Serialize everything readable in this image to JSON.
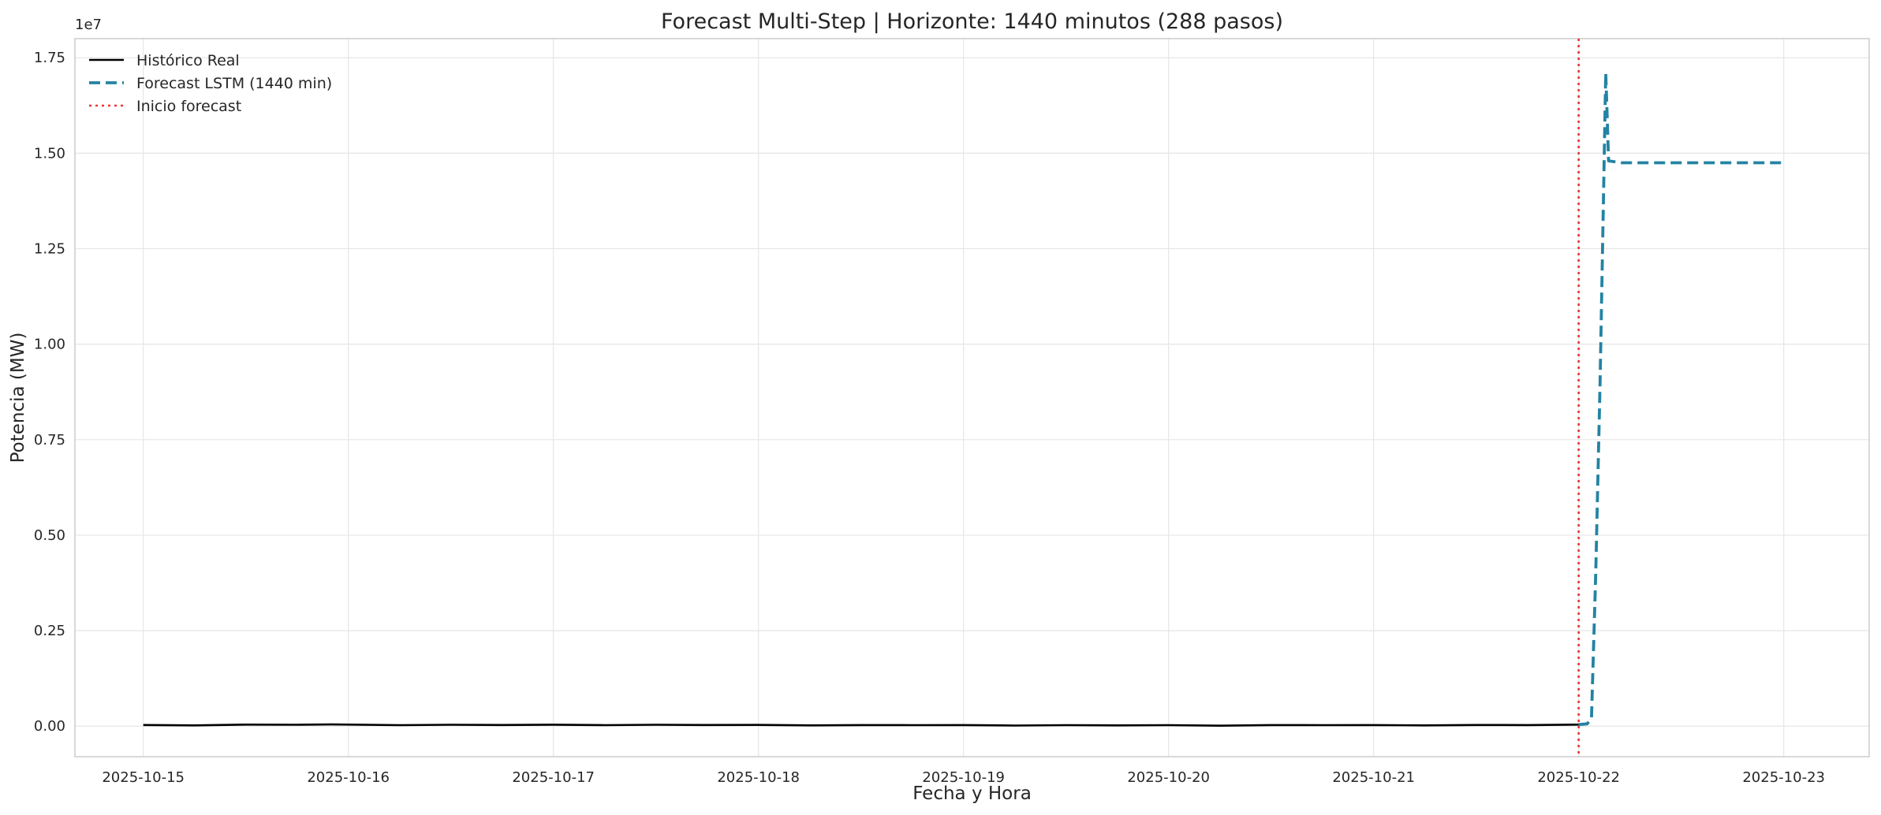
{
  "chart_data": {
    "type": "line",
    "title": "Forecast Multi-Step | Horizonte: 1440 minutos (288 pasos)",
    "xlabel": "Fecha y Hora",
    "ylabel": "Potencia (MW)",
    "y_offset_label": "1e7",
    "y_scale": 10000000,
    "xlim": [
      "2025-10-14T16:00",
      "2025-10-23T10:00"
    ],
    "ylim": [
      -800000,
      18000000
    ],
    "grid": true,
    "legend_position": "top-left",
    "x_ticks": [
      "2025-10-15",
      "2025-10-16",
      "2025-10-17",
      "2025-10-18",
      "2025-10-19",
      "2025-10-20",
      "2025-10-21",
      "2025-10-22",
      "2025-10-23"
    ],
    "y_ticks": [
      0,
      2500000,
      5000000,
      7500000,
      10000000,
      12500000,
      15000000,
      17500000
    ],
    "y_tick_labels": [
      "0.00",
      "0.25",
      "0.50",
      "0.75",
      "1.00",
      "1.25",
      "1.50",
      "1.75"
    ],
    "series": [
      {
        "name": "Histórico Real",
        "color": "#000000",
        "style": "solid",
        "points": [
          [
            "2025-10-15T00:00",
            30000
          ],
          [
            "2025-10-15T06:00",
            20000
          ],
          [
            "2025-10-15T12:00",
            40000
          ],
          [
            "2025-10-15T18:00",
            35000
          ],
          [
            "2025-10-15T22:00",
            45000
          ],
          [
            "2025-10-16T06:00",
            25000
          ],
          [
            "2025-10-16T12:00",
            35000
          ],
          [
            "2025-10-16T18:00",
            30000
          ],
          [
            "2025-10-17T00:00",
            38000
          ],
          [
            "2025-10-17T06:00",
            25000
          ],
          [
            "2025-10-17T12:00",
            35000
          ],
          [
            "2025-10-17T18:00",
            30000
          ],
          [
            "2025-10-18T00:00",
            32000
          ],
          [
            "2025-10-18T06:00",
            20000
          ],
          [
            "2025-10-18T12:00",
            28000
          ],
          [
            "2025-10-18T18:00",
            25000
          ],
          [
            "2025-10-19T00:00",
            28000
          ],
          [
            "2025-10-19T06:00",
            15000
          ],
          [
            "2025-10-19T12:00",
            25000
          ],
          [
            "2025-10-19T18:00",
            20000
          ],
          [
            "2025-10-20T00:00",
            25000
          ],
          [
            "2025-10-20T06:00",
            10000
          ],
          [
            "2025-10-20T12:00",
            28000
          ],
          [
            "2025-10-20T18:00",
            25000
          ],
          [
            "2025-10-21T00:00",
            28000
          ],
          [
            "2025-10-21T06:00",
            20000
          ],
          [
            "2025-10-21T12:00",
            30000
          ],
          [
            "2025-10-21T18:00",
            28000
          ],
          [
            "2025-10-22T00:00",
            40000
          ]
        ]
      },
      {
        "name": "Forecast LSTM (1440 min)",
        "color": "#2383a3",
        "style": "dashed",
        "points": [
          [
            "2025-10-22T00:00",
            40000
          ],
          [
            "2025-10-22T01:00",
            60000
          ],
          [
            "2025-10-22T01:30",
            200000
          ],
          [
            "2025-10-22T02:00",
            4000000
          ],
          [
            "2025-10-22T02:30",
            9000000
          ],
          [
            "2025-10-22T02:45",
            12000000
          ],
          [
            "2025-10-22T03:10",
            17100000
          ],
          [
            "2025-10-22T03:30",
            14800000
          ],
          [
            "2025-10-22T05:00",
            14750000
          ],
          [
            "2025-10-23T00:00",
            14750000
          ]
        ]
      }
    ],
    "annotations": [
      {
        "name": "Inicio forecast",
        "type": "vline",
        "x": "2025-10-22T00:00",
        "color": "#ee3333",
        "style": "dotted"
      }
    ]
  }
}
